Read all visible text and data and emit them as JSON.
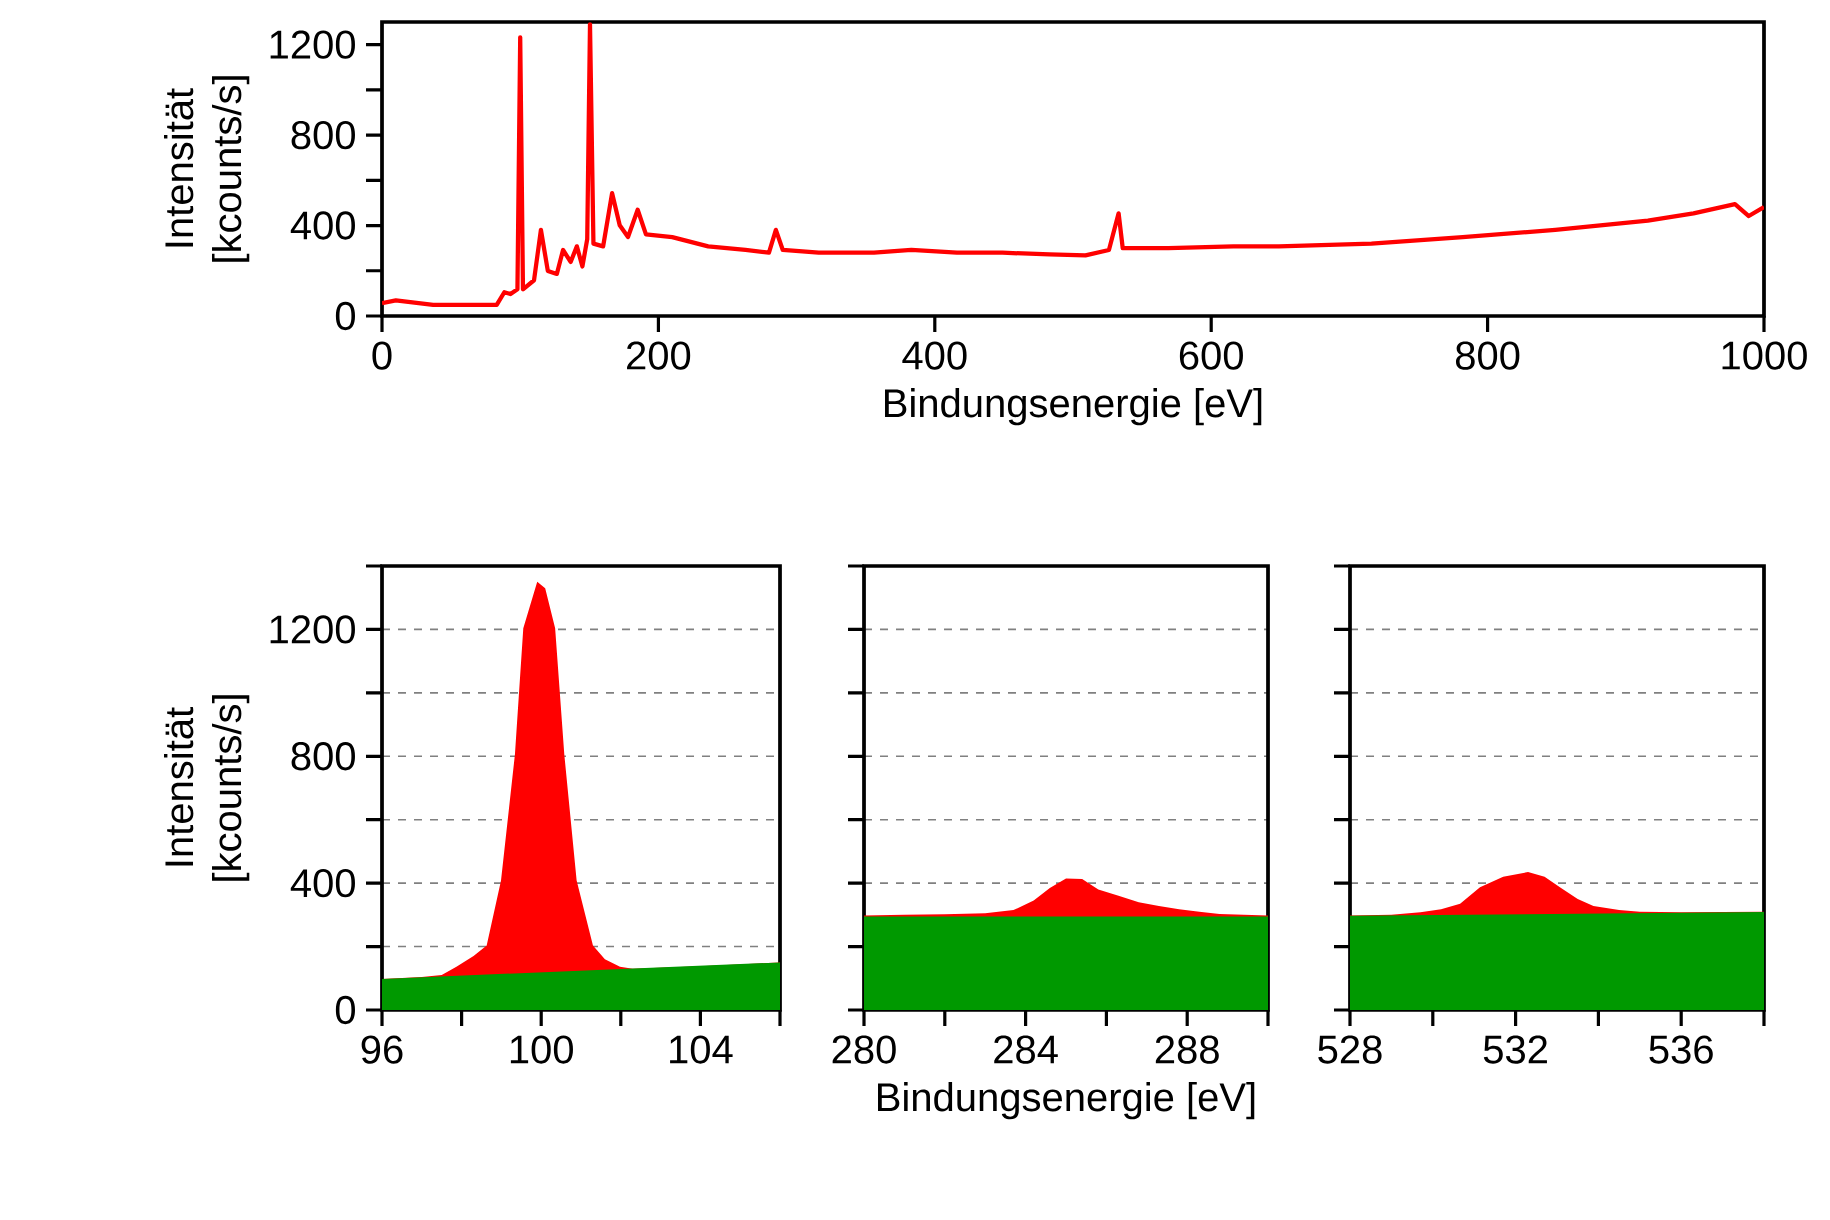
{
  "chart_data": [
    {
      "type": "line",
      "xlabel": "Bindungsenergie [eV]",
      "ylabel": "Intensität [kcounts/s]",
      "color": "#ff0000",
      "x": [
        0,
        10,
        37,
        83,
        88.5,
        93,
        98,
        100,
        102,
        110,
        115,
        120,
        126.5,
        131,
        136.5,
        141,
        145,
        148.5,
        150.5,
        153,
        160,
        166.5,
        172,
        178,
        185,
        191,
        210,
        236,
        263,
        280,
        285,
        290,
        316,
        356,
        383,
        416,
        449,
        483,
        509,
        526,
        533,
        536,
        569,
        616,
        649,
        716,
        782,
        849,
        916,
        949,
        979,
        989,
        1000
      ],
      "values": [
        57,
        69,
        49,
        49,
        105,
        97,
        118,
        1232,
        118,
        158,
        381,
        199,
        186,
        292,
        239,
        308,
        219,
        340,
        1290,
        320,
        308,
        543,
        401,
        349,
        470,
        361,
        349,
        308,
        292,
        280,
        381,
        292,
        280,
        280,
        292,
        280,
        280,
        272,
        268,
        292,
        454,
        300,
        300,
        308,
        308,
        320,
        349,
        381,
        422,
        454,
        495,
        442,
        482
      ],
      "xlim": [
        0,
        1000
      ],
      "ylim": [
        0,
        1300
      ],
      "xticks": [
        0,
        200,
        400,
        600,
        800,
        1000
      ],
      "yticks": [
        0,
        {
          "value": 200,
          "label": null
        },
        400,
        {
          "value": 600,
          "label": null
        },
        800,
        {
          "value": 1000,
          "label": null
        },
        1200
      ]
    },
    {
      "type": "area",
      "ylabel": "Intensität [kcounts/s]",
      "grid": "y",
      "series": [
        {
          "color": "#ff0000",
          "x": [
            96,
            97,
            97.5,
            97.87,
            98.3,
            98.63,
            98.99,
            99.34,
            99.55,
            99.9,
            100.1,
            100.35,
            100.58,
            100.89,
            101.3,
            101.6,
            101.98,
            102.3,
            103,
            104,
            105,
            106
          ],
          "values": [
            98,
            104,
            110,
            136,
            170,
            203,
            408,
            806,
            1204,
            1350,
            1330,
            1204,
            806,
            408,
            203,
            160,
            136,
            130,
            133,
            138,
            144,
            150
          ]
        },
        {
          "color": "#009900",
          "x": [
            96,
            106
          ],
          "values": [
            98,
            150
          ]
        }
      ],
      "xlim": [
        96,
        106
      ],
      "ylim": [
        0,
        1400
      ],
      "xticks": [
        96,
        {
          "value": 98,
          "label": null
        },
        100,
        {
          "value": 102,
          "label": null
        },
        104,
        {
          "value": 106,
          "label": null
        }
      ],
      "yticks": [
        0,
        {
          "value": 200,
          "label": null
        },
        400,
        {
          "value": 600,
          "label": null
        },
        800,
        {
          "value": 1000,
          "label": null
        },
        1200,
        {
          "value": 1400,
          "label": null
        }
      ]
    },
    {
      "type": "area",
      "xlabel": "Bindungsenergie [eV]",
      "grid": "y",
      "tick_labels": "x",
      "series": [
        {
          "color": "#ff0000",
          "x": [
            280,
            281,
            282,
            283,
            283.7,
            284.2,
            284.6,
            285,
            285.4,
            285.8,
            286.3,
            286.8,
            287.3,
            287.8,
            288.3,
            288.8,
            289.4,
            290
          ],
          "values": [
            298,
            300,
            302,
            305,
            315,
            345,
            385,
            415,
            413,
            380,
            360,
            340,
            328,
            318,
            310,
            303,
            300,
            298
          ]
        },
        {
          "color": "#009900",
          "x": [
            280,
            290
          ],
          "values": [
            295,
            295
          ]
        }
      ],
      "xlim": [
        280,
        290
      ],
      "ylim": [
        0,
        1400
      ],
      "xticks": [
        280,
        {
          "value": 282,
          "label": null
        },
        284,
        {
          "value": 286,
          "label": null
        },
        288,
        {
          "value": 290,
          "label": null
        }
      ],
      "yticks": [
        0,
        {
          "value": 200,
          "label": null
        },
        400,
        {
          "value": 600,
          "label": null
        },
        800,
        {
          "value": 1000,
          "label": null
        },
        1200,
        {
          "value": 1400,
          "label": null
        }
      ]
    },
    {
      "type": "area",
      "grid": "y",
      "tick_labels": "x",
      "series": [
        {
          "color": "#ff0000",
          "x": [
            528,
            529,
            529.7,
            530.2,
            530.66,
            531.14,
            531.7,
            532.3,
            532.7,
            533.07,
            533.5,
            533.88,
            534.5,
            535,
            536,
            537,
            538
          ],
          "values": [
            298,
            300,
            308,
            318,
            335,
            387,
            420,
            435,
            420,
            387,
            350,
            328,
            315,
            310,
            308,
            309,
            310
          ]
        },
        {
          "color": "#009900",
          "x": [
            528,
            538
          ],
          "values": [
            297,
            309
          ]
        }
      ],
      "xlim": [
        528,
        538
      ],
      "ylim": [
        0,
        1400
      ],
      "xticks": [
        528,
        {
          "value": 530,
          "label": null
        },
        532,
        {
          "value": 534,
          "label": null
        },
        536,
        {
          "value": 538,
          "label": null
        }
      ],
      "yticks": [
        0,
        {
          "value": 200,
          "label": null
        },
        400,
        {
          "value": 600,
          "label": null
        },
        800,
        {
          "value": 1000,
          "label": null
        },
        1200,
        {
          "value": 1400,
          "label": null
        }
      ]
    }
  ]
}
